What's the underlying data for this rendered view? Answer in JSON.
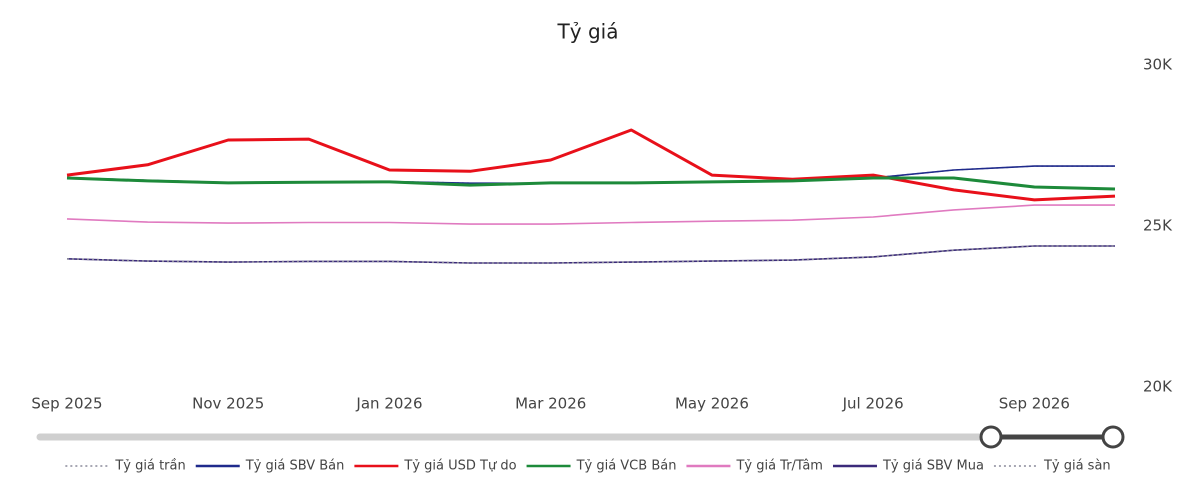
{
  "chart_data": {
    "type": "line",
    "title": "Tỷ giá",
    "categories": [
      "Sep 2025",
      null,
      "Nov 2025",
      null,
      "Jan 2026",
      null,
      "Mar 2026",
      null,
      "May 2026",
      null,
      "Jul 2026",
      null,
      "Sep 2026",
      null
    ],
    "ylim": [
      20000,
      30000
    ],
    "yticks": [
      {
        "value": 20000,
        "label": "20K"
      },
      {
        "value": 25000,
        "label": "25K"
      },
      {
        "value": 30000,
        "label": "30K"
      }
    ],
    "grid": false,
    "legend": "bottom",
    "series": [
      {
        "name": "Tỷ giá trần",
        "color": "#8a8a9a",
        "style": "dotted",
        "values": [
          26500,
          26420,
          26350,
          26360,
          26380,
          26330,
          26330,
          26340,
          26360,
          26390,
          26490,
          26740,
          26860,
          26860
        ]
      },
      {
        "name": "Tỷ giá SBV Bán",
        "color": "#1f2a8c",
        "style": "solid",
        "values": [
          26500,
          26420,
          26350,
          26360,
          26380,
          26330,
          26330,
          26340,
          26360,
          26390,
          26490,
          26740,
          26860,
          26860
        ]
      },
      {
        "name": "Tỷ giá USD Tự do",
        "color": "#e8101a",
        "style": "solid",
        "values": [
          26580,
          26900,
          27670,
          27700,
          26740,
          26700,
          27050,
          27980,
          26580,
          26450,
          26580,
          26120,
          25810,
          25930
        ]
      },
      {
        "name": "Tỷ giá VCB Bán",
        "color": "#1d8a3a",
        "style": "solid",
        "values": [
          26490,
          26400,
          26340,
          26360,
          26370,
          26270,
          26340,
          26340,
          26370,
          26400,
          26490,
          26490,
          26210,
          26150
        ]
      },
      {
        "name": "Tỷ giá Tr/Tâm",
        "color": "#e07ac0",
        "style": "solid",
        "values": [
          25220,
          25120,
          25090,
          25110,
          25110,
          25060,
          25060,
          25110,
          25150,
          25180,
          25280,
          25500,
          25650,
          25650
        ]
      },
      {
        "name": "Tỷ giá SBV Mua",
        "color": "#3b2a7a",
        "style": "solid",
        "values": [
          23980,
          23910,
          23880,
          23900,
          23900,
          23850,
          23850,
          23880,
          23910,
          23940,
          24040,
          24250,
          24380,
          24380
        ]
      },
      {
        "name": "Tỷ giá sàn",
        "color": "#8a8a9a",
        "style": "dotted",
        "values": [
          23980,
          23910,
          23880,
          23900,
          23900,
          23850,
          23850,
          23880,
          23910,
          23940,
          24040,
          24250,
          24380,
          24380
        ]
      }
    ]
  }
}
